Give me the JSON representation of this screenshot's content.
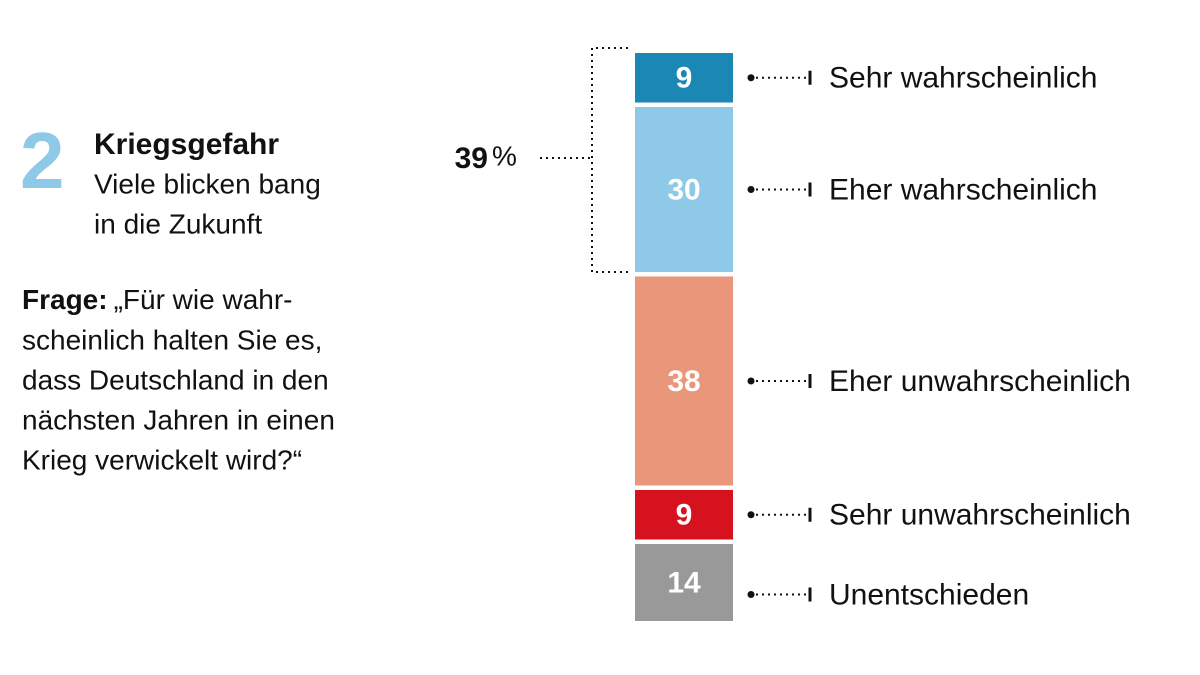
{
  "chart_data": {
    "type": "stacked-bar",
    "badge": "2",
    "title": "Kriegsgefahr",
    "subtitle": [
      "Viele blicken bang",
      "in die Zukunft"
    ],
    "question_label": "Frage:",
    "question": [
      "„Für wie wahr-",
      "scheinlich halten Sie es,",
      "dass Deutschland in den",
      "nächsten Jahren in einen",
      "Krieg verwickelt wird?“"
    ],
    "series": [
      {
        "name": "Sehr wahrscheinlich",
        "color": "#1a87b5",
        "values": [
          9
        ]
      },
      {
        "name": "Eher wahrscheinlich",
        "color": "#8ecae8",
        "values": [
          30
        ]
      },
      {
        "name": "Eher unwahrscheinlich",
        "color": "#e9967a",
        "values": [
          38
        ]
      },
      {
        "name": "Sehr unwahrscheinlich",
        "color": "#d5121e",
        "values": [
          9
        ]
      },
      {
        "name": "Unentschieden",
        "color": "#999999",
        "values": [
          14
        ]
      }
    ],
    "bracket_value": 39,
    "bracket_unit": "%"
  }
}
